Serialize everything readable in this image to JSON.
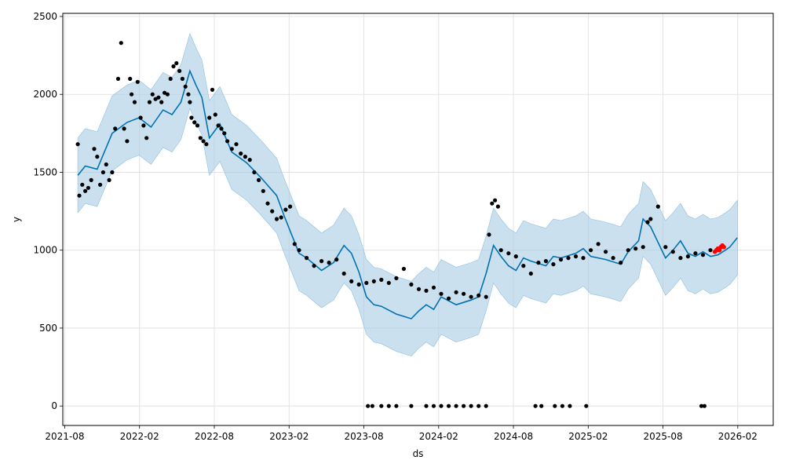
{
  "chart_data": {
    "type": "line",
    "title": "",
    "xlabel": "ds",
    "ylabel": "y",
    "xlim": [
      2021.57,
      2026.32
    ],
    "ylim": [
      -125,
      2520
    ],
    "grid": true,
    "x_ticks": [
      {
        "label": "2021-08",
        "value": 2021.583
      },
      {
        "label": "2022-02",
        "value": 2022.083
      },
      {
        "label": "2022-08",
        "value": 2022.583
      },
      {
        "label": "2023-02",
        "value": 2023.083
      },
      {
        "label": "2023-08",
        "value": 2023.583
      },
      {
        "label": "2024-02",
        "value": 2024.083
      },
      {
        "label": "2024-08",
        "value": 2024.583
      },
      {
        "label": "2025-02",
        "value": 2025.083
      },
      {
        "label": "2025-08",
        "value": 2025.583
      },
      {
        "label": "2026-02",
        "value": 2026.083
      }
    ],
    "y_ticks": [
      0,
      500,
      1000,
      1500,
      2000,
      2500
    ],
    "colors": {
      "observed": "#000000",
      "forecast_line": "#0072B2",
      "uncertainty_band": "#A9CCE3",
      "recent_points": "#FF0000",
      "grid": "#DDDDDD"
    },
    "series": [
      {
        "name": "forecast (yhat)",
        "type": "line",
        "x": [
          2021.67,
          2021.72,
          2021.8,
          2021.9,
          2022.0,
          2022.08,
          2022.16,
          2022.24,
          2022.3,
          2022.36,
          2022.42,
          2022.46,
          2022.5,
          2022.55,
          2022.62,
          2022.7,
          2022.8,
          2022.9,
          2023.0,
          2023.05,
          2023.1,
          2023.15,
          2023.2,
          2023.3,
          2023.38,
          2023.45,
          2023.5,
          2023.55,
          2023.6,
          2023.65,
          2023.7,
          2023.8,
          2023.9,
          2023.95,
          2024.0,
          2024.05,
          2024.1,
          2024.2,
          2024.3,
          2024.35,
          2024.4,
          2024.45,
          2024.5,
          2024.55,
          2024.6,
          2024.65,
          2024.7,
          2024.8,
          2024.85,
          2024.9,
          2025.0,
          2025.05,
          2025.1,
          2025.15,
          2025.2,
          2025.3,
          2025.35,
          2025.42,
          2025.45,
          2025.5,
          2025.55,
          2025.6,
          2025.65,
          2025.7,
          2025.75,
          2025.8,
          2025.85,
          2025.9,
          2025.95,
          2026.0,
          2026.03,
          2026.08
        ],
        "values": [
          1480,
          1540,
          1520,
          1750,
          1820,
          1850,
          1790,
          1900,
          1870,
          1950,
          2150,
          2060,
          1980,
          1720,
          1810,
          1630,
          1560,
          1460,
          1350,
          1220,
          1100,
          980,
          950,
          870,
          920,
          1030,
          980,
          860,
          700,
          650,
          640,
          590,
          560,
          610,
          650,
          620,
          700,
          650,
          680,
          700,
          850,
          1030,
          960,
          900,
          870,
          950,
          930,
          900,
          960,
          950,
          980,
          1010,
          960,
          950,
          940,
          910,
          990,
          1060,
          1200,
          1150,
          1050,
          950,
          1000,
          1060,
          980,
          960,
          990,
          960,
          970,
          1000,
          1020,
          1080
        ]
      },
      {
        "name": "uncertainty upper",
        "type": "area_bound",
        "x": [
          2021.67,
          2021.72,
          2021.8,
          2021.9,
          2022.0,
          2022.08,
          2022.16,
          2022.24,
          2022.3,
          2022.36,
          2022.42,
          2022.46,
          2022.5,
          2022.55,
          2022.62,
          2022.7,
          2022.8,
          2022.9,
          2023.0,
          2023.05,
          2023.1,
          2023.15,
          2023.2,
          2023.3,
          2023.38,
          2023.45,
          2023.5,
          2023.55,
          2023.6,
          2023.65,
          2023.7,
          2023.8,
          2023.9,
          2023.95,
          2024.0,
          2024.05,
          2024.1,
          2024.2,
          2024.3,
          2024.35,
          2024.4,
          2024.45,
          2024.5,
          2024.55,
          2024.6,
          2024.65,
          2024.7,
          2024.8,
          2024.85,
          2024.9,
          2025.0,
          2025.05,
          2025.1,
          2025.15,
          2025.2,
          2025.3,
          2025.35,
          2025.42,
          2025.45,
          2025.5,
          2025.55,
          2025.6,
          2025.65,
          2025.7,
          2025.75,
          2025.8,
          2025.85,
          2025.9,
          2025.95,
          2026.0,
          2026.03,
          2026.08
        ],
        "values": [
          1720,
          1780,
          1760,
          1990,
          2060,
          2090,
          2030,
          2140,
          2110,
          2190,
          2390,
          2300,
          2220,
          1960,
          2050,
          1870,
          1800,
          1700,
          1590,
          1460,
          1340,
          1220,
          1190,
          1110,
          1160,
          1270,
          1220,
          1100,
          940,
          890,
          880,
          830,
          800,
          850,
          890,
          860,
          940,
          890,
          920,
          940,
          1090,
          1270,
          1200,
          1140,
          1110,
          1190,
          1170,
          1140,
          1200,
          1190,
          1220,
          1250,
          1200,
          1190,
          1180,
          1150,
          1230,
          1300,
          1440,
          1390,
          1290,
          1190,
          1240,
          1300,
          1220,
          1200,
          1230,
          1200,
          1210,
          1240,
          1260,
          1320
        ]
      },
      {
        "name": "uncertainty lower",
        "type": "area_bound",
        "x": [
          2021.67,
          2021.72,
          2021.8,
          2021.9,
          2022.0,
          2022.08,
          2022.16,
          2022.24,
          2022.3,
          2022.36,
          2022.42,
          2022.46,
          2022.5,
          2022.55,
          2022.62,
          2022.7,
          2022.8,
          2022.9,
          2023.0,
          2023.05,
          2023.1,
          2023.15,
          2023.2,
          2023.3,
          2023.38,
          2023.45,
          2023.5,
          2023.55,
          2023.6,
          2023.65,
          2023.7,
          2023.8,
          2023.9,
          2023.95,
          2024.0,
          2024.05,
          2024.1,
          2024.2,
          2024.3,
          2024.35,
          2024.4,
          2024.45,
          2024.5,
          2024.55,
          2024.6,
          2024.65,
          2024.7,
          2024.8,
          2024.85,
          2024.9,
          2025.0,
          2025.05,
          2025.1,
          2025.15,
          2025.2,
          2025.3,
          2025.35,
          2025.42,
          2025.45,
          2025.5,
          2025.55,
          2025.6,
          2025.65,
          2025.7,
          2025.75,
          2025.8,
          2025.85,
          2025.9,
          2025.95,
          2026.0,
          2026.03,
          2026.08
        ],
        "values": [
          1240,
          1300,
          1280,
          1510,
          1580,
          1610,
          1550,
          1660,
          1630,
          1710,
          1910,
          1820,
          1740,
          1480,
          1570,
          1390,
          1320,
          1220,
          1110,
          980,
          860,
          740,
          710,
          630,
          680,
          790,
          740,
          620,
          460,
          410,
          400,
          350,
          320,
          370,
          410,
          380,
          460,
          410,
          440,
          460,
          610,
          790,
          720,
          660,
          630,
          710,
          690,
          660,
          720,
          710,
          740,
          770,
          720,
          710,
          700,
          670,
          750,
          820,
          960,
          910,
          810,
          710,
          760,
          820,
          740,
          720,
          750,
          720,
          730,
          760,
          780,
          840
        ]
      },
      {
        "name": "observed",
        "type": "scatter",
        "x": [
          2021.67,
          2021.68,
          2021.7,
          2021.72,
          2021.74,
          2021.76,
          2021.78,
          2021.8,
          2021.82,
          2021.84,
          2021.86,
          2021.88,
          2021.9,
          2021.92,
          2021.94,
          2021.96,
          2021.98,
          2022.0,
          2022.02,
          2022.03,
          2022.05,
          2022.07,
          2022.09,
          2022.11,
          2022.13,
          2022.15,
          2022.17,
          2022.19,
          2022.21,
          2022.23,
          2022.25,
          2022.27,
          2022.29,
          2022.31,
          2022.33,
          2022.35,
          2022.37,
          2022.39,
          2022.41,
          2022.42,
          2022.43,
          2022.45,
          2022.47,
          2022.49,
          2022.51,
          2022.53,
          2022.55,
          2022.57,
          2022.59,
          2022.61,
          2022.63,
          2022.65,
          2022.67,
          2022.7,
          2022.73,
          2022.76,
          2022.79,
          2022.82,
          2022.85,
          2022.88,
          2022.91,
          2022.94,
          2022.97,
          2023.0,
          2023.03,
          2023.06,
          2023.09,
          2023.12,
          2023.15,
          2023.2,
          2023.25,
          2023.3,
          2023.35,
          2023.4,
          2023.45,
          2023.5,
          2023.55,
          2023.6,
          2023.65,
          2023.7,
          2023.75,
          2023.8,
          2023.85,
          2023.9,
          2023.95,
          2024.0,
          2024.05,
          2024.1,
          2024.15,
          2024.2,
          2024.25,
          2024.3,
          2024.35,
          2024.4,
          2024.42,
          2024.44,
          2024.46,
          2024.48,
          2024.5,
          2024.55,
          2024.6,
          2024.65,
          2024.7,
          2024.75,
          2024.8,
          2024.85,
          2024.9,
          2024.95,
          2025.0,
          2025.05,
          2025.1,
          2025.15,
          2025.2,
          2025.25,
          2025.3,
          2025.35,
          2025.4,
          2025.45,
          2025.48,
          2025.5,
          2025.55,
          2025.6,
          2025.65,
          2025.7,
          2025.75,
          2025.8,
          2025.85,
          2025.9,
          2023.61,
          2023.64,
          2023.7,
          2023.75,
          2023.8,
          2023.9,
          2024.0,
          2024.05,
          2024.1,
          2024.15,
          2024.2,
          2024.25,
          2024.3,
          2024.35,
          2024.4,
          2024.73,
          2024.77,
          2024.86,
          2024.91,
          2024.96,
          2025.07,
          2025.84,
          2025.86
        ],
        "values": [
          1680,
          1350,
          1420,
          1380,
          1400,
          1450,
          1650,
          1600,
          1420,
          1500,
          1550,
          1450,
          1500,
          1780,
          2100,
          2330,
          1780,
          1700,
          2100,
          2000,
          1950,
          2080,
          1850,
          1800,
          1720,
          1950,
          2000,
          1970,
          1980,
          1950,
          2010,
          2000,
          2100,
          2180,
          2200,
          2150,
          2100,
          2050,
          2000,
          1950,
          1850,
          1820,
          1800,
          1720,
          1700,
          1680,
          1850,
          2030,
          1870,
          1800,
          1780,
          1750,
          1700,
          1650,
          1680,
          1620,
          1600,
          1580,
          1500,
          1450,
          1380,
          1300,
          1250,
          1200,
          1210,
          1260,
          1280,
          1040,
          1000,
          950,
          900,
          930,
          920,
          940,
          850,
          800,
          780,
          790,
          800,
          810,
          790,
          820,
          880,
          780,
          750,
          740,
          760,
          720,
          690,
          730,
          720,
          700,
          710,
          700,
          1100,
          1300,
          1320,
          1280,
          1000,
          980,
          960,
          900,
          850,
          920,
          930,
          910,
          940,
          950,
          960,
          950,
          1000,
          1040,
          990,
          950,
          920,
          1000,
          1010,
          1020,
          1180,
          1200,
          1280,
          1020,
          990,
          950,
          960,
          980,
          970,
          1000,
          0,
          0,
          0,
          0,
          0,
          0,
          0,
          0,
          0,
          0,
          0,
          0,
          0,
          0,
          0,
          0,
          0,
          0,
          0,
          0,
          0,
          0,
          0
        ]
      },
      {
        "name": "recent",
        "type": "scatter",
        "x": [
          2025.93,
          2025.94,
          2025.95,
          2025.96,
          2025.97,
          2025.98,
          2025.99
        ],
        "values": [
          990,
          1000,
          1010,
          1000,
          1020,
          1030,
          1020
        ]
      }
    ]
  }
}
